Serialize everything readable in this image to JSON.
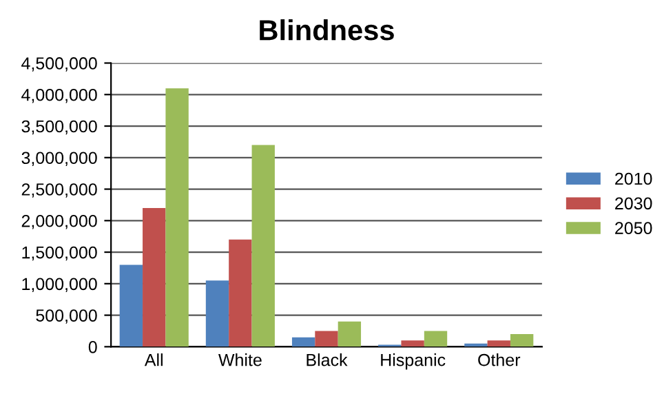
{
  "chart_data": {
    "type": "bar",
    "title": "Blindness",
    "categories": [
      "All",
      "White",
      "Black",
      "Hispanic",
      "Other"
    ],
    "series": [
      {
        "name": "2010",
        "color": "#4f81bd",
        "values": [
          1300000,
          1050000,
          150000,
          30000,
          50000
        ]
      },
      {
        "name": "2030",
        "color": "#c0504d",
        "values": [
          2200000,
          1700000,
          250000,
          100000,
          100000
        ]
      },
      {
        "name": "2050",
        "color": "#9bbb59",
        "values": [
          4100000,
          3200000,
          400000,
          250000,
          200000
        ]
      }
    ],
    "ylim": [
      0,
      4500000
    ],
    "yticks": [
      {
        "value": 0,
        "label": "0"
      },
      {
        "value": 500000,
        "label": "500,000"
      },
      {
        "value": 1000000,
        "label": "1,000,000"
      },
      {
        "value": 1500000,
        "label": "1,500,000"
      },
      {
        "value": 2000000,
        "label": "2,000,000"
      },
      {
        "value": 2500000,
        "label": "2,500,000"
      },
      {
        "value": 3000000,
        "label": "3,000,000"
      },
      {
        "value": 3500000,
        "label": "3,500,000"
      },
      {
        "value": 4000000,
        "label": "4,000,000"
      },
      {
        "value": 4500000,
        "label": "4,500,000"
      }
    ],
    "grid": "y",
    "legend": "right"
  }
}
